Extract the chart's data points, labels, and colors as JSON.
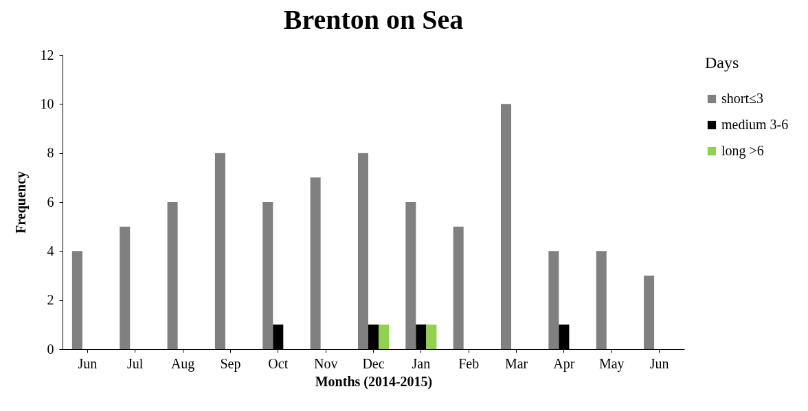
{
  "chart_data": {
    "type": "bar",
    "title": "Brenton on Sea",
    "xlabel": "Months (2014-2015)",
    "ylabel": "Frequency",
    "legend_title": "Days",
    "categories": [
      "Jun",
      "Jul",
      "Aug",
      "Sep",
      "Oct",
      "Nov",
      "Dec",
      "Jan",
      "Feb",
      "Mar",
      "Apr",
      "May",
      "Jun"
    ],
    "series": [
      {
        "name": "short≤3",
        "color": "#808080",
        "values": [
          4,
          5,
          6,
          8,
          6,
          7,
          8,
          6,
          5,
          10,
          4,
          4,
          3
        ]
      },
      {
        "name": "medium 3-6",
        "color": "#000000",
        "values": [
          0,
          0,
          0,
          0,
          1,
          0,
          1,
          1,
          0,
          0,
          1,
          0,
          0
        ]
      },
      {
        "name": "long >6",
        "color": "#92d050",
        "values": [
          0,
          0,
          0,
          0,
          0,
          0,
          1,
          1,
          0,
          0,
          0,
          0,
          0
        ]
      }
    ],
    "ylim": [
      0,
      12
    ],
    "yticks": [
      0,
      2,
      4,
      6,
      8,
      10,
      12
    ],
    "grid": false,
    "legend": "right"
  }
}
